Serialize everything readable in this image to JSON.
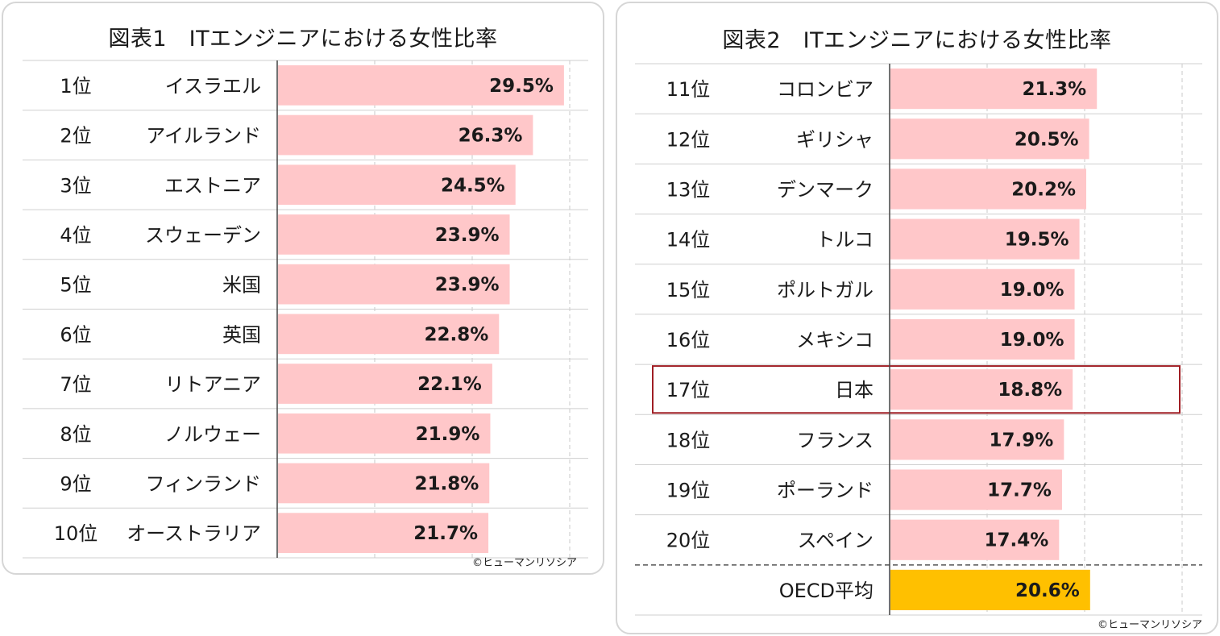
{
  "chart_data": [
    {
      "type": "bar",
      "orientation": "horizontal",
      "title": "図表1　ITエンジニアにおける女性比率",
      "categories": [
        "1位",
        "2位",
        "3位",
        "4位",
        "5位",
        "6位",
        "7位",
        "8位",
        "9位",
        "10位"
      ],
      "countries": [
        "イスラエル",
        "アイルランド",
        "エストニア",
        "スウェーデン",
        "米国",
        "英国",
        "リトアニア",
        "ノルウェー",
        "フィンランド",
        "オーストラリア"
      ],
      "values": [
        29.5,
        26.3,
        24.5,
        23.9,
        23.9,
        22.8,
        22.1,
        21.9,
        21.8,
        21.7
      ],
      "labels": [
        "29.5%",
        "26.3%",
        "24.5%",
        "23.9%",
        "23.9%",
        "22.8%",
        "22.1%",
        "21.9%",
        "21.8%",
        "21.7%"
      ],
      "xlim": [
        0,
        30
      ],
      "bar_color": "#ffc7c9",
      "grid": "dashed vertical",
      "copyright": "©ヒューマンリソシア"
    },
    {
      "type": "bar",
      "orientation": "horizontal",
      "title": "図表2　ITエンジニアにおける女性比率",
      "categories": [
        "11位",
        "12位",
        "13位",
        "14位",
        "15位",
        "16位",
        "17位",
        "18位",
        "19位",
        "20位",
        ""
      ],
      "countries": [
        "コロンビア",
        "ギリシャ",
        "デンマーク",
        "トルコ",
        "ポルトガル",
        "メキシコ",
        "日本",
        "フランス",
        "ポーランド",
        "スペイン",
        "OECD平均"
      ],
      "values": [
        21.3,
        20.5,
        20.2,
        19.5,
        19.0,
        19.0,
        18.8,
        17.9,
        17.7,
        17.4,
        20.6
      ],
      "labels": [
        "21.3%",
        "20.5%",
        "20.2%",
        "19.5%",
        "19.0%",
        "19.0%",
        "18.8%",
        "17.9%",
        "17.7%",
        "17.4%",
        "20.6%"
      ],
      "xlim": [
        0,
        30
      ],
      "bar_color": "#ffc7c9",
      "highlight_color": "#ffc000",
      "highlight_category": "OECD平均",
      "outlined_category": "日本",
      "outline_color": "#a01e24",
      "grid": "dashed vertical",
      "copyright": "©ヒューマンリソシア"
    }
  ]
}
